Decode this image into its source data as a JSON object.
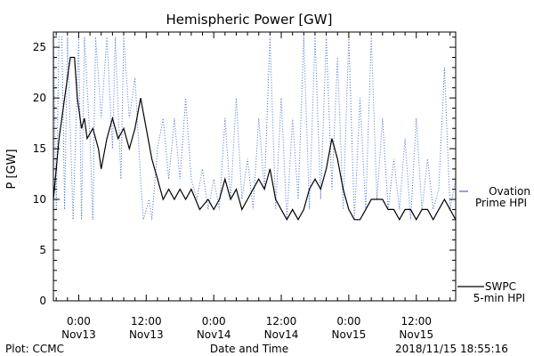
{
  "footer": {
    "plot_by": "Plot: CCMC",
    "timestamp": "2018/11/15 18:55:16"
  },
  "colors": {
    "ovation": "#3b6fd6",
    "swpc": "#000000",
    "axis": "#000000"
  },
  "chart_data": {
    "type": "line",
    "title": "Hemispheric Power [GW]",
    "xlabel": "Date and Time",
    "ylabel": "P [GW]",
    "ylim": [
      0,
      26.5
    ],
    "yticks": [
      0,
      5,
      10,
      15,
      20,
      25
    ],
    "xlim": [
      "2018-11-12 19:30",
      "2018-11-15 19:00"
    ],
    "xticks": [
      {
        "t": "2018-11-13 00:00",
        "time": "0:00",
        "date": "Nov13"
      },
      {
        "t": "2018-11-13 12:00",
        "time": "12:00",
        "date": "Nov13"
      },
      {
        "t": "2018-11-14 00:00",
        "time": "0:00",
        "date": "Nov14"
      },
      {
        "t": "2018-11-14 12:00",
        "time": "12:00",
        "date": "Nov14"
      },
      {
        "t": "2018-11-15 00:00",
        "time": "0:00",
        "date": "Nov15"
      },
      {
        "t": "2018-11-15 12:00",
        "time": "12:00",
        "date": "Nov15"
      }
    ],
    "series": [
      {
        "name": "SWPC 5-min HPI",
        "legend_lines": [
          "SWPC",
          "5-min HPI"
        ],
        "style": "solid",
        "color": "#000000",
        "points": [
          [
            "2018-11-12 19:30",
            10
          ],
          [
            "2018-11-12 20:00",
            13
          ],
          [
            "2018-11-12 20:30",
            16
          ],
          [
            "2018-11-12 21:00",
            18
          ],
          [
            "2018-11-12 21:30",
            20
          ],
          [
            "2018-11-12 22:00",
            22
          ],
          [
            "2018-11-12 22:30",
            24
          ],
          [
            "2018-11-12 23:15",
            24
          ],
          [
            "2018-11-12 23:45",
            20
          ],
          [
            "2018-11-13 00:30",
            17
          ],
          [
            "2018-11-13 01:00",
            18
          ],
          [
            "2018-11-13 01:30",
            16
          ],
          [
            "2018-11-13 02:30",
            17
          ],
          [
            "2018-11-13 03:30",
            15
          ],
          [
            "2018-11-13 04:00",
            13
          ],
          [
            "2018-11-13 05:00",
            16
          ],
          [
            "2018-11-13 06:00",
            18
          ],
          [
            "2018-11-13 07:00",
            16
          ],
          [
            "2018-11-13 08:00",
            17
          ],
          [
            "2018-11-13 09:00",
            15
          ],
          [
            "2018-11-13 10:00",
            17
          ],
          [
            "2018-11-13 11:00",
            20
          ],
          [
            "2018-11-13 12:00",
            17
          ],
          [
            "2018-11-13 13:00",
            14
          ],
          [
            "2018-11-13 14:00",
            12
          ],
          [
            "2018-11-13 15:00",
            10
          ],
          [
            "2018-11-13 16:00",
            11
          ],
          [
            "2018-11-13 17:00",
            10
          ],
          [
            "2018-11-13 18:00",
            11
          ],
          [
            "2018-11-13 19:00",
            10
          ],
          [
            "2018-11-13 20:00",
            11
          ],
          [
            "2018-11-13 21:30",
            9
          ],
          [
            "2018-11-13 23:00",
            10
          ],
          [
            "2018-11-14 00:00",
            9
          ],
          [
            "2018-11-14 01:00",
            10
          ],
          [
            "2018-11-14 02:00",
            12
          ],
          [
            "2018-11-14 03:00",
            10
          ],
          [
            "2018-11-14 04:00",
            11
          ],
          [
            "2018-11-14 05:00",
            9
          ],
          [
            "2018-11-14 06:00",
            10
          ],
          [
            "2018-11-14 07:00",
            11
          ],
          [
            "2018-11-14 08:00",
            12
          ],
          [
            "2018-11-14 09:00",
            11
          ],
          [
            "2018-11-14 10:00",
            13
          ],
          [
            "2018-11-14 11:00",
            10
          ],
          [
            "2018-11-14 12:00",
            9
          ],
          [
            "2018-11-14 13:00",
            8
          ],
          [
            "2018-11-14 14:00",
            9
          ],
          [
            "2018-11-14 15:00",
            8
          ],
          [
            "2018-11-14 16:00",
            9
          ],
          [
            "2018-11-14 17:00",
            11
          ],
          [
            "2018-11-14 18:00",
            12
          ],
          [
            "2018-11-14 19:00",
            11
          ],
          [
            "2018-11-14 20:00",
            13
          ],
          [
            "2018-11-14 21:00",
            16
          ],
          [
            "2018-11-14 22:00",
            14
          ],
          [
            "2018-11-14 23:00",
            11
          ],
          [
            "2018-11-15 00:00",
            9
          ],
          [
            "2018-11-15 01:00",
            8
          ],
          [
            "2018-11-15 02:00",
            8
          ],
          [
            "2018-11-15 03:00",
            9
          ],
          [
            "2018-11-15 04:00",
            10
          ],
          [
            "2018-11-15 05:00",
            10
          ],
          [
            "2018-11-15 06:00",
            10
          ],
          [
            "2018-11-15 07:00",
            9
          ],
          [
            "2018-11-15 08:00",
            9
          ],
          [
            "2018-11-15 09:00",
            8
          ],
          [
            "2018-11-15 10:00",
            9
          ],
          [
            "2018-11-15 11:00",
            9
          ],
          [
            "2018-11-15 12:00",
            8
          ],
          [
            "2018-11-15 13:00",
            9
          ],
          [
            "2018-11-15 14:00",
            9
          ],
          [
            "2018-11-15 15:00",
            8
          ],
          [
            "2018-11-15 16:00",
            9
          ],
          [
            "2018-11-15 17:00",
            10
          ],
          [
            "2018-11-15 18:00",
            9
          ],
          [
            "2018-11-15 19:00",
            8
          ]
        ]
      },
      {
        "name": "Ovation Prime HPI",
        "legend_lines": [
          "Ovation",
          "Prime HPI"
        ],
        "style": "dotted",
        "color": "#3b6fd6",
        "points": [
          [
            "2018-11-12 19:30",
            26
          ],
          [
            "2018-11-12 20:00",
            9
          ],
          [
            "2018-11-12 20:30",
            26
          ],
          [
            "2018-11-12 21:00",
            26
          ],
          [
            "2018-11-12 21:30",
            9
          ],
          [
            "2018-11-12 22:00",
            26
          ],
          [
            "2018-11-12 23:00",
            8
          ],
          [
            "2018-11-13 00:00",
            26
          ],
          [
            "2018-11-13 00:30",
            8
          ],
          [
            "2018-11-13 01:00",
            26
          ],
          [
            "2018-11-13 02:00",
            16
          ],
          [
            "2018-11-13 02:30",
            8
          ],
          [
            "2018-11-13 03:00",
            26
          ],
          [
            "2018-11-13 04:00",
            18
          ],
          [
            "2018-11-13 05:00",
            26
          ],
          [
            "2018-11-13 06:00",
            15
          ],
          [
            "2018-11-13 06:30",
            26
          ],
          [
            "2018-11-13 07:30",
            12
          ],
          [
            "2018-11-13 08:00",
            26
          ],
          [
            "2018-11-13 09:00",
            18
          ],
          [
            "2018-11-13 10:00",
            22
          ],
          [
            "2018-11-13 11:00",
            12
          ],
          [
            "2018-11-13 11:30",
            8
          ],
          [
            "2018-11-13 12:30",
            10
          ],
          [
            "2018-11-13 13:00",
            8
          ],
          [
            "2018-11-13 14:00",
            15
          ],
          [
            "2018-11-13 15:00",
            18
          ],
          [
            "2018-11-13 16:00",
            12
          ],
          [
            "2018-11-13 17:00",
            18
          ],
          [
            "2018-11-13 18:00",
            12
          ],
          [
            "2018-11-13 19:00",
            20
          ],
          [
            "2018-11-13 20:00",
            12
          ],
          [
            "2018-11-13 21:00",
            10
          ],
          [
            "2018-11-13 22:00",
            13
          ],
          [
            "2018-11-13 23:00",
            9
          ],
          [
            "2018-11-14 00:00",
            12
          ],
          [
            "2018-11-14 01:00",
            9
          ],
          [
            "2018-11-14 02:00",
            18
          ],
          [
            "2018-11-14 03:00",
            10
          ],
          [
            "2018-11-14 04:00",
            20
          ],
          [
            "2018-11-14 05:00",
            10
          ],
          [
            "2018-11-14 06:00",
            14
          ],
          [
            "2018-11-14 07:00",
            9
          ],
          [
            "2018-11-14 08:00",
            18
          ],
          [
            "2018-11-14 09:00",
            11
          ],
          [
            "2018-11-14 10:00",
            26
          ],
          [
            "2018-11-14 11:00",
            9
          ],
          [
            "2018-11-14 12:00",
            20
          ],
          [
            "2018-11-14 13:00",
            8
          ],
          [
            "2018-11-14 14:00",
            18
          ],
          [
            "2018-11-14 15:00",
            10
          ],
          [
            "2018-11-14 16:00",
            26
          ],
          [
            "2018-11-14 17:00",
            9
          ],
          [
            "2018-11-14 18:00",
            26
          ],
          [
            "2018-11-14 19:00",
            10
          ],
          [
            "2018-11-14 20:00",
            26
          ],
          [
            "2018-11-14 21:00",
            11
          ],
          [
            "2018-11-14 22:00",
            24
          ],
          [
            "2018-11-14 23:00",
            9
          ],
          [
            "2018-11-15 00:00",
            26
          ],
          [
            "2018-11-15 01:00",
            8
          ],
          [
            "2018-11-15 02:00",
            20
          ],
          [
            "2018-11-15 03:00",
            9
          ],
          [
            "2018-11-15 04:00",
            26
          ],
          [
            "2018-11-15 05:00",
            10
          ],
          [
            "2018-11-15 06:00",
            18
          ],
          [
            "2018-11-15 07:00",
            9
          ],
          [
            "2018-11-15 08:00",
            14
          ],
          [
            "2018-11-15 09:00",
            9
          ],
          [
            "2018-11-15 10:00",
            16
          ],
          [
            "2018-11-15 11:00",
            8
          ],
          [
            "2018-11-15 12:00",
            18
          ],
          [
            "2018-11-15 13:00",
            9
          ],
          [
            "2018-11-15 14:00",
            14
          ],
          [
            "2018-11-15 15:00",
            9
          ],
          [
            "2018-11-15 16:00",
            11
          ],
          [
            "2018-11-15 17:00",
            23
          ],
          [
            "2018-11-15 18:00",
            9
          ],
          [
            "2018-11-15 19:00",
            12
          ]
        ]
      }
    ]
  }
}
